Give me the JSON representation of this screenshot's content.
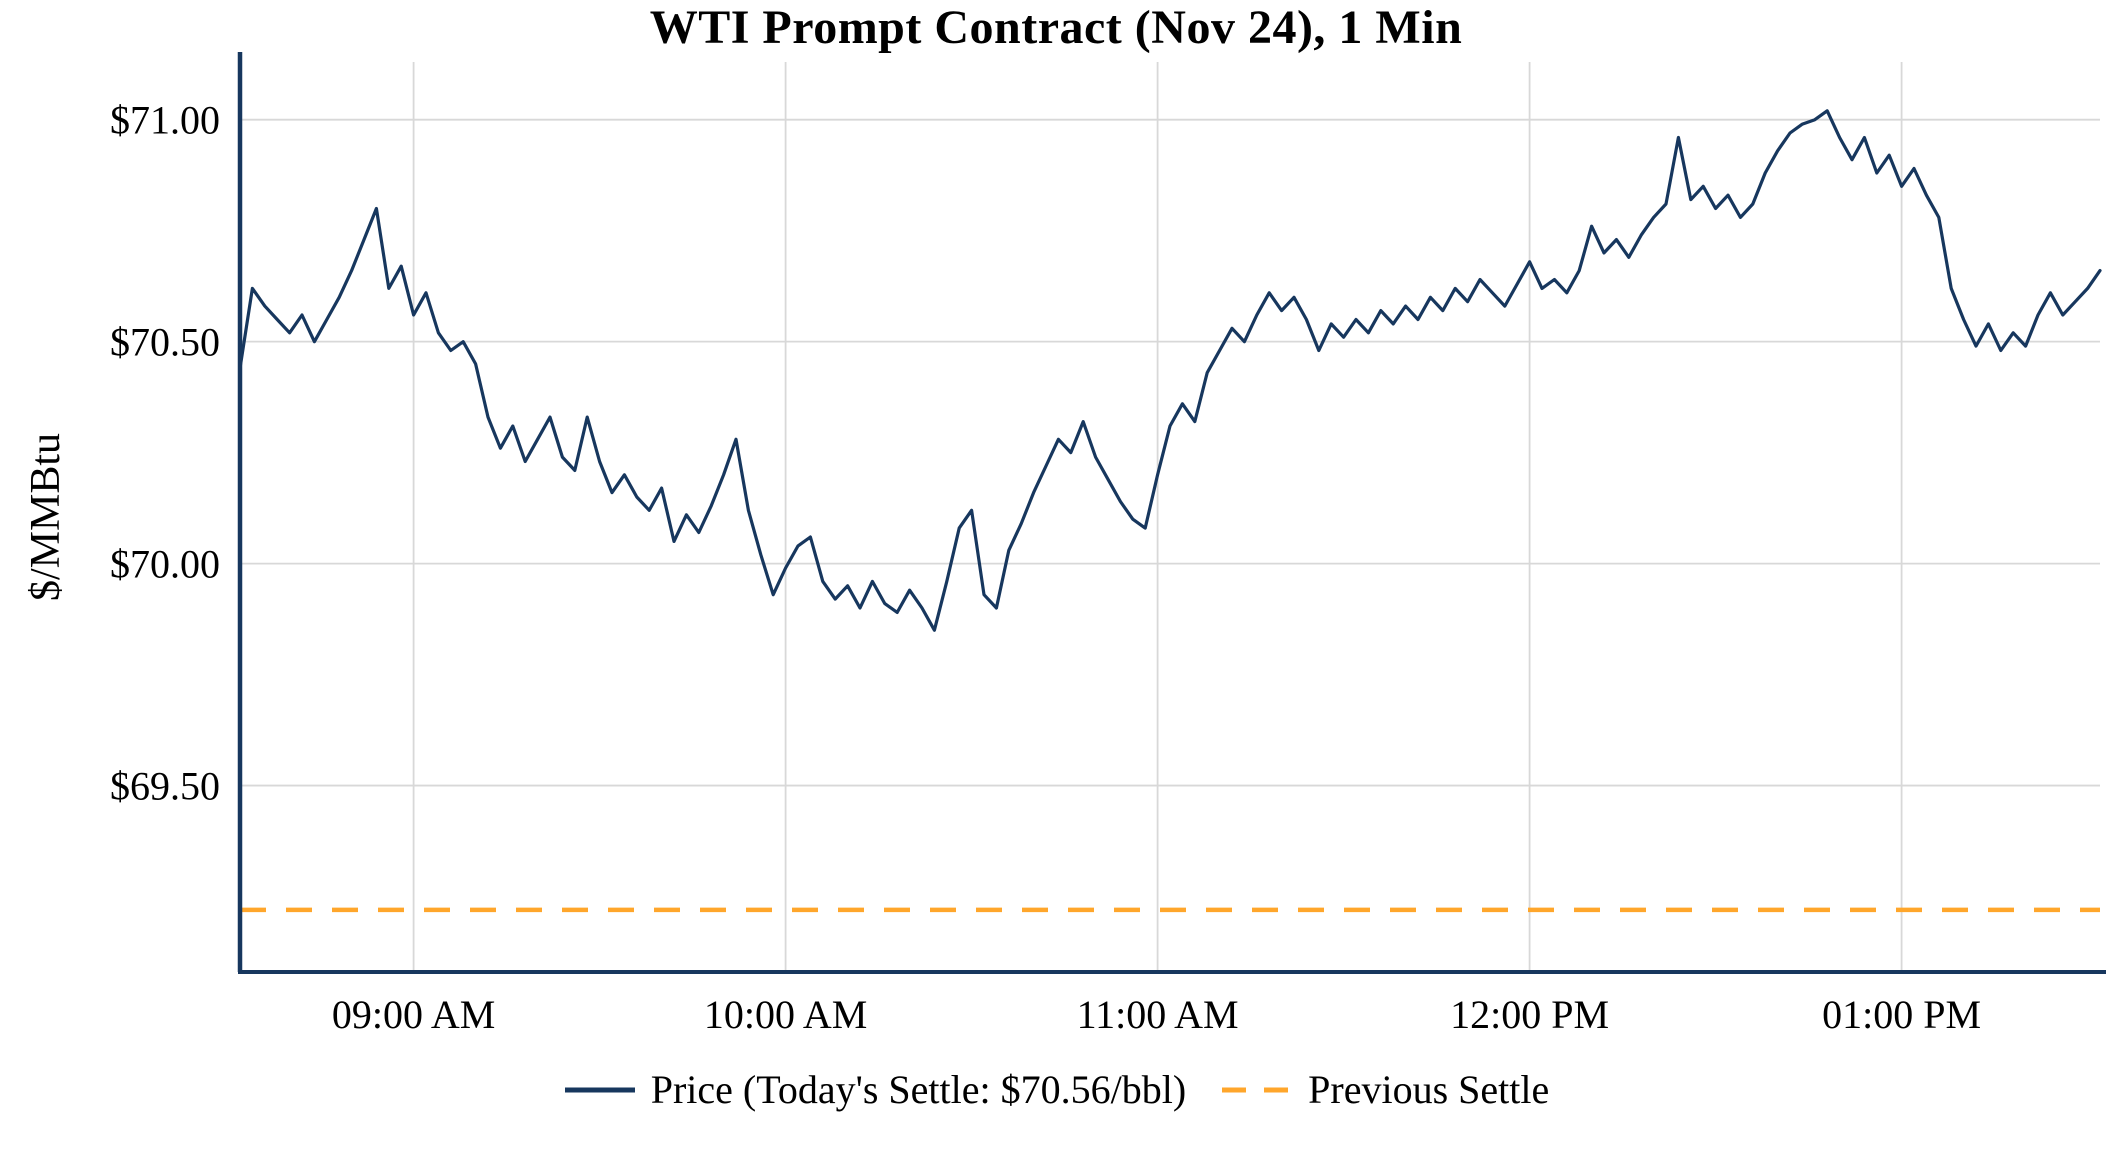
{
  "legend": {
    "price_label": "Price (Today's Settle: $70.56/bbl)",
    "prev_settle_label": "Previous Settle"
  },
  "colors": {
    "price": "#17375E",
    "prev_settle": "#FFA62B",
    "grid": "#D8D8D8",
    "axis": "#17375E",
    "text": "#000000"
  },
  "chart_data": {
    "type": "line",
    "title": "WTI Prompt Contract (Nov 24), 1 Min",
    "xlabel": "",
    "ylabel": "$/MMBtu",
    "grid": true,
    "legend_position": "bottom",
    "todays_settle": 70.56,
    "previous_settle": 69.22,
    "x_axis": {
      "unit": "minutes-since-midnight",
      "range_minutes": [
        512,
        812
      ],
      "tick_minutes": [
        540,
        600,
        660,
        720,
        780
      ],
      "tick_labels": [
        "09:00 AM",
        "10:00 AM",
        "11:00 AM",
        "12:00 PM",
        "01:00 PM"
      ]
    },
    "y_axis": {
      "range": [
        69.08,
        71.13
      ],
      "tick_values": [
        71.0,
        70.5,
        70.0,
        69.5
      ],
      "tick_labels": [
        "$71.00",
        "$70.50",
        "$70.00",
        "$69.50"
      ]
    },
    "series": [
      {
        "name": "Price",
        "style": "solid",
        "color": "#17375E",
        "start_minute": 512,
        "step_minutes": 2,
        "values": [
          70.44,
          70.62,
          70.58,
          70.55,
          70.52,
          70.56,
          70.5,
          70.55,
          70.6,
          70.66,
          70.73,
          70.8,
          70.62,
          70.67,
          70.56,
          70.61,
          70.52,
          70.48,
          70.5,
          70.45,
          70.33,
          70.26,
          70.31,
          70.23,
          70.28,
          70.33,
          70.24,
          70.21,
          70.33,
          70.23,
          70.16,
          70.2,
          70.15,
          70.12,
          70.17,
          70.05,
          70.11,
          70.07,
          70.13,
          70.2,
          70.28,
          70.12,
          70.02,
          69.93,
          69.99,
          70.04,
          70.06,
          69.96,
          69.92,
          69.95,
          69.9,
          69.96,
          69.91,
          69.89,
          69.94,
          69.9,
          69.85,
          69.96,
          70.08,
          70.12,
          69.93,
          69.9,
          70.03,
          70.09,
          70.16,
          70.22,
          70.28,
          70.25,
          70.32,
          70.24,
          70.19,
          70.14,
          70.1,
          70.08,
          70.2,
          70.31,
          70.36,
          70.32,
          70.43,
          70.48,
          70.53,
          70.5,
          70.56,
          70.61,
          70.57,
          70.6,
          70.55,
          70.48,
          70.54,
          70.51,
          70.55,
          70.52,
          70.57,
          70.54,
          70.58,
          70.55,
          70.6,
          70.57,
          70.62,
          70.59,
          70.64,
          70.61,
          70.58,
          70.63,
          70.68,
          70.62,
          70.64,
          70.61,
          70.66,
          70.76,
          70.7,
          70.73,
          70.69,
          70.74,
          70.78,
          70.81,
          70.96,
          70.82,
          70.85,
          70.8,
          70.83,
          70.78,
          70.81,
          70.88,
          70.93,
          70.97,
          70.99,
          71.0,
          71.02,
          70.96,
          70.91,
          70.96,
          70.88,
          70.92,
          70.85,
          70.89,
          70.83,
          70.78,
          70.62,
          70.55,
          70.49,
          70.54,
          70.48,
          70.52,
          70.49,
          70.56,
          70.61,
          70.56,
          70.59,
          70.62,
          70.66
        ]
      },
      {
        "name": "Previous Settle",
        "style": "dashed",
        "color": "#FFA62B",
        "value": 69.22
      }
    ]
  }
}
